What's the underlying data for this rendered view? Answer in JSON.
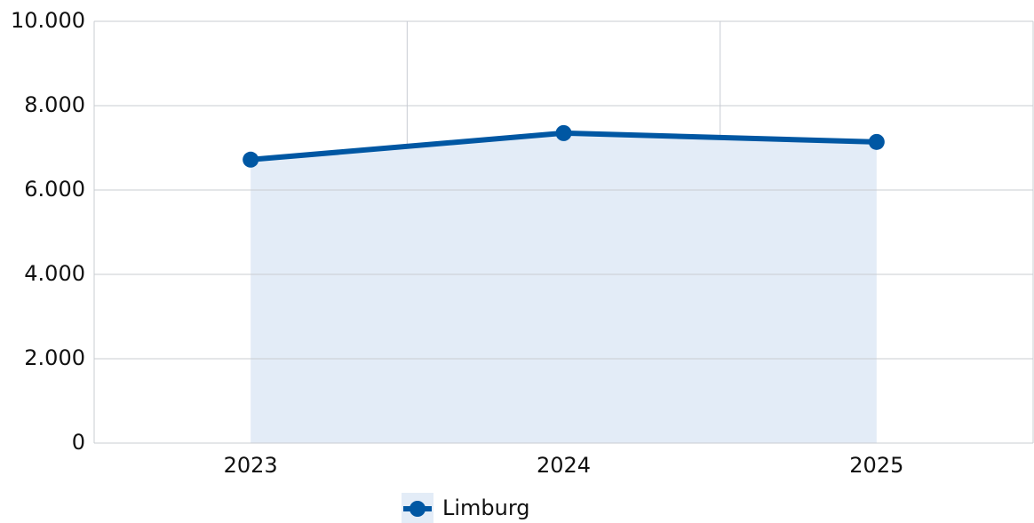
{
  "chart_data": {
    "type": "line",
    "categories": [
      "2023",
      "2024",
      "2025"
    ],
    "series": [
      {
        "name": "Limburg",
        "color": "#0057a3",
        "fill": "#e3ecf7",
        "values": [
          6720,
          7350,
          7140
        ]
      }
    ],
    "ylim": [
      0,
      10000
    ],
    "yticks": [
      0,
      {
        "value": 2000,
        "label": "2.000"
      },
      {
        "value": 4000,
        "label": "4.000"
      },
      {
        "value": 6000,
        "label": "6.000"
      },
      {
        "value": 8000,
        "label": "8.000"
      },
      {
        "value": 10000,
        "label": "10.000"
      }
    ],
    "grid": true,
    "legend": "bottom"
  }
}
